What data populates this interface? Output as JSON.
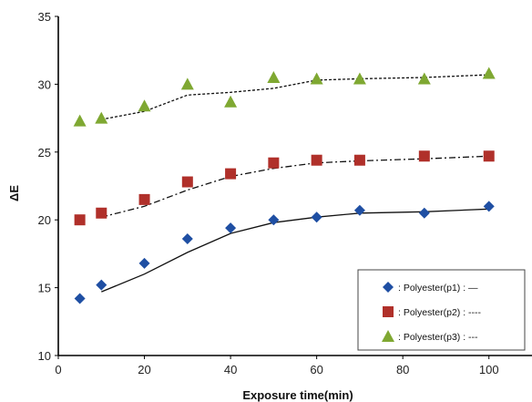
{
  "chart_data": {
    "type": "scatter",
    "title": "",
    "xlabel": "Exposure time(min)",
    "ylabel": "ΔE",
    "xlim": [
      0,
      110
    ],
    "ylim": [
      10,
      35
    ],
    "xticks": [
      "0",
      "20",
      "40",
      "60",
      "80",
      "100"
    ],
    "yticks": [
      "10",
      "15",
      "20",
      "25",
      "30",
      "35"
    ],
    "grid": false,
    "legend_position": "bottom-right",
    "series": [
      {
        "name": "Polyester(p1)",
        "legend_label": ": Polyester(p1) : —",
        "marker": "diamond",
        "color": "#1f4fa3",
        "line_style": "solid",
        "points": [
          [
            5,
            14.2
          ],
          [
            10,
            15.2
          ],
          [
            20,
            16.8
          ],
          [
            30,
            18.6
          ],
          [
            40,
            19.4
          ],
          [
            50,
            20.0
          ],
          [
            60,
            20.2
          ],
          [
            70,
            20.7
          ],
          [
            85,
            20.5
          ],
          [
            100,
            21.0
          ]
        ],
        "fit": [
          [
            10,
            14.7
          ],
          [
            20,
            16.0
          ],
          [
            30,
            17.6
          ],
          [
            40,
            19.0
          ],
          [
            50,
            19.8
          ],
          [
            60,
            20.2
          ],
          [
            70,
            20.5
          ],
          [
            85,
            20.6
          ],
          [
            100,
            20.8
          ]
        ]
      },
      {
        "name": "Polyester(p2)",
        "legend_label": ": Polyester(p2) : ----",
        "marker": "square",
        "color": "#b0302a",
        "line_style": "dashdot",
        "points": [
          [
            5,
            20.0
          ],
          [
            10,
            20.5
          ],
          [
            20,
            21.5
          ],
          [
            30,
            22.8
          ],
          [
            40,
            23.4
          ],
          [
            50,
            24.2
          ],
          [
            60,
            24.4
          ],
          [
            70,
            24.4
          ],
          [
            85,
            24.7
          ],
          [
            100,
            24.7
          ]
        ],
        "fit": [
          [
            10,
            20.2
          ],
          [
            20,
            21.0
          ],
          [
            30,
            22.2
          ],
          [
            40,
            23.2
          ],
          [
            50,
            23.8
          ],
          [
            60,
            24.2
          ],
          [
            70,
            24.35
          ],
          [
            85,
            24.5
          ],
          [
            100,
            24.7
          ]
        ]
      },
      {
        "name": "Polyester(p3)",
        "legend_label": ": Polyester(p3) : ---",
        "marker": "triangle",
        "color": "#7fa832",
        "line_style": "dotted",
        "points": [
          [
            5,
            27.3
          ],
          [
            10,
            27.5
          ],
          [
            20,
            28.4
          ],
          [
            30,
            30.0
          ],
          [
            40,
            28.7
          ],
          [
            50,
            30.5
          ],
          [
            60,
            30.4
          ],
          [
            70,
            30.4
          ],
          [
            85,
            30.4
          ],
          [
            100,
            30.8
          ]
        ],
        "fit": [
          [
            10,
            27.4
          ],
          [
            20,
            28.0
          ],
          [
            30,
            29.2
          ],
          [
            40,
            29.4
          ],
          [
            50,
            29.7
          ],
          [
            60,
            30.3
          ],
          [
            70,
            30.4
          ],
          [
            85,
            30.5
          ],
          [
            100,
            30.7
          ]
        ]
      }
    ]
  }
}
